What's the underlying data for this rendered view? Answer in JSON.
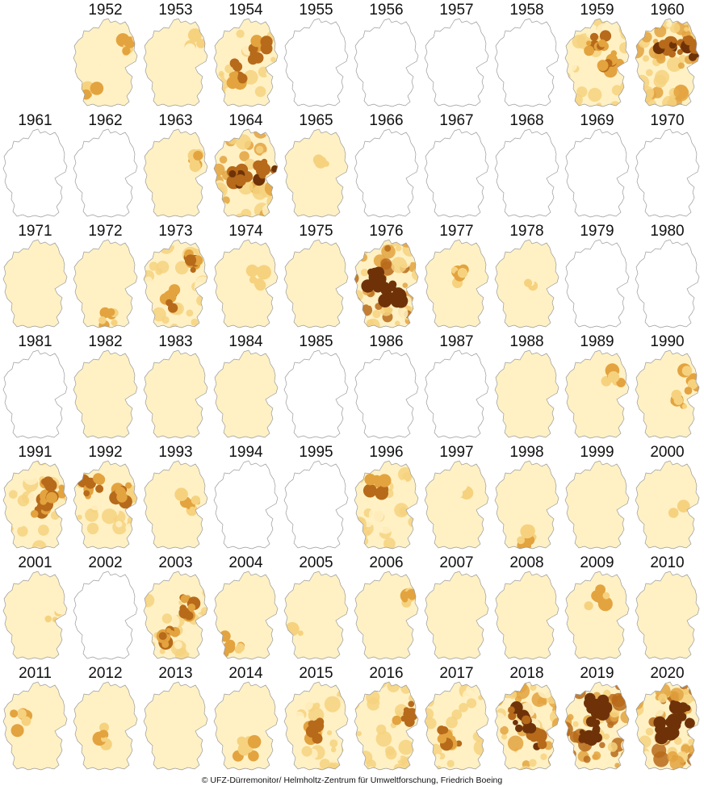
{
  "chart_data": {
    "type": "heatmap",
    "description_scale": "drought intensity level 0 (none) to 5 (exceptional), per year, shown on a map of Germany",
    "colors": [
      "#ffffff",
      "#fff1c4",
      "#f6d27f",
      "#e3a33f",
      "#b76a1a",
      "#6f3208"
    ],
    "years": [
      {
        "year": "1952",
        "level": 2,
        "hot": [
          [
            0.85,
            0.3
          ],
          [
            0.3,
            0.85
          ]
        ]
      },
      {
        "year": "1953",
        "level": 1,
        "hot": [
          [
            0.75,
            0.3
          ]
        ]
      },
      {
        "year": "1954",
        "level": 3,
        "hot": [
          [
            0.7,
            0.35
          ],
          [
            0.4,
            0.6
          ]
        ]
      },
      {
        "year": "1955",
        "level": 0,
        "hot": []
      },
      {
        "year": "1956",
        "level": 0,
        "hot": []
      },
      {
        "year": "1957",
        "level": 0,
        "hot": []
      },
      {
        "year": "1958",
        "level": 0,
        "hot": []
      },
      {
        "year": "1959",
        "level": 3,
        "hot": [
          [
            0.5,
            0.3
          ],
          [
            0.7,
            0.5
          ]
        ]
      },
      {
        "year": "1960",
        "level": 4,
        "hot": [
          [
            0.5,
            0.3
          ],
          [
            0.8,
            0.35
          ]
        ]
      },
      {
        "year": "1961",
        "level": 0,
        "hot": []
      },
      {
        "year": "1962",
        "level": 0,
        "hot": []
      },
      {
        "year": "1963",
        "level": 2,
        "hot": [
          [
            0.75,
            0.4
          ]
        ]
      },
      {
        "year": "1964",
        "level": 4,
        "hot": [
          [
            0.8,
            0.45
          ],
          [
            0.4,
            0.55
          ]
        ]
      },
      {
        "year": "1965",
        "level": 1,
        "hot": [
          [
            0.55,
            0.45
          ]
        ]
      },
      {
        "year": "1966",
        "level": 0,
        "hot": []
      },
      {
        "year": "1967",
        "level": 0,
        "hot": []
      },
      {
        "year": "1968",
        "level": 0,
        "hot": []
      },
      {
        "year": "1969",
        "level": 0,
        "hot": []
      },
      {
        "year": "1970",
        "level": 0,
        "hot": []
      },
      {
        "year": "1971",
        "level": 1,
        "hot": []
      },
      {
        "year": "1972",
        "level": 2,
        "hot": [
          [
            0.5,
            0.85
          ]
        ]
      },
      {
        "year": "1973",
        "level": 3,
        "hot": [
          [
            0.8,
            0.25
          ],
          [
            0.35,
            0.65
          ]
        ]
      },
      {
        "year": "1974",
        "level": 2,
        "hot": [
          [
            0.65,
            0.4
          ]
        ]
      },
      {
        "year": "1975",
        "level": 1,
        "hot": []
      },
      {
        "year": "1976",
        "level": 5,
        "hot": [
          [
            0.35,
            0.45
          ],
          [
            0.6,
            0.6
          ]
        ]
      },
      {
        "year": "1977",
        "level": 2,
        "hot": [
          [
            0.5,
            0.4
          ]
        ]
      },
      {
        "year": "1978",
        "level": 1,
        "hot": [
          [
            0.55,
            0.4
          ]
        ]
      },
      {
        "year": "1979",
        "level": 0,
        "hot": []
      },
      {
        "year": "1980",
        "level": 0,
        "hot": []
      },
      {
        "year": "1981",
        "level": 0,
        "hot": []
      },
      {
        "year": "1982",
        "level": 1,
        "hot": []
      },
      {
        "year": "1983",
        "level": 1,
        "hot": []
      },
      {
        "year": "1984",
        "level": 1,
        "hot": []
      },
      {
        "year": "1985",
        "level": 0,
        "hot": []
      },
      {
        "year": "1986",
        "level": 0,
        "hot": []
      },
      {
        "year": "1987",
        "level": 0,
        "hot": []
      },
      {
        "year": "1988",
        "level": 1,
        "hot": []
      },
      {
        "year": "1989",
        "level": 2,
        "hot": [
          [
            0.75,
            0.3
          ]
        ]
      },
      {
        "year": "1990",
        "level": 2,
        "hot": [
          [
            0.8,
            0.3
          ],
          [
            0.7,
            0.55
          ]
        ]
      },
      {
        "year": "1991",
        "level": 3,
        "hot": [
          [
            0.6,
            0.5
          ],
          [
            0.75,
            0.3
          ]
        ]
      },
      {
        "year": "1992",
        "level": 3,
        "hot": [
          [
            0.75,
            0.35
          ],
          [
            0.3,
            0.3
          ]
        ]
      },
      {
        "year": "1993",
        "level": 2,
        "hot": [
          [
            0.7,
            0.45
          ]
        ]
      },
      {
        "year": "1994",
        "level": 0,
        "hot": []
      },
      {
        "year": "1995",
        "level": 0,
        "hot": []
      },
      {
        "year": "1996",
        "level": 3,
        "hot": [
          [
            0.35,
            0.3
          ]
        ]
      },
      {
        "year": "1997",
        "level": 1,
        "hot": [
          [
            0.6,
            0.3
          ]
        ]
      },
      {
        "year": "1998",
        "level": 2,
        "hot": [
          [
            0.5,
            0.85
          ]
        ]
      },
      {
        "year": "1999",
        "level": 1,
        "hot": []
      },
      {
        "year": "2000",
        "level": 1,
        "hot": [
          [
            0.7,
            0.5
          ]
        ]
      },
      {
        "year": "2001",
        "level": 1,
        "hot": [
          [
            0.75,
            0.5
          ]
        ]
      },
      {
        "year": "2002",
        "level": 0,
        "hot": []
      },
      {
        "year": "2003",
        "level": 3,
        "hot": [
          [
            0.4,
            0.75
          ],
          [
            0.7,
            0.4
          ]
        ]
      },
      {
        "year": "2004",
        "level": 2,
        "hot": [
          [
            0.3,
            0.8
          ]
        ]
      },
      {
        "year": "2005",
        "level": 1,
        "hot": [
          [
            0.2,
            0.65
          ]
        ]
      },
      {
        "year": "2006",
        "level": 2,
        "hot": [
          [
            0.75,
            0.35
          ]
        ]
      },
      {
        "year": "2007",
        "level": 1,
        "hot": []
      },
      {
        "year": "2008",
        "level": 1,
        "hot": []
      },
      {
        "year": "2009",
        "level": 2,
        "hot": [
          [
            0.5,
            0.3
          ]
        ]
      },
      {
        "year": "2010",
        "level": 1,
        "hot": []
      },
      {
        "year": "2011",
        "level": 2,
        "hot": [
          [
            0.3,
            0.45
          ]
        ]
      },
      {
        "year": "2012",
        "level": 2,
        "hot": [
          [
            0.5,
            0.6
          ]
        ]
      },
      {
        "year": "2013",
        "level": 1,
        "hot": []
      },
      {
        "year": "2014",
        "level": 2,
        "hot": [
          [
            0.5,
            0.75
          ]
        ]
      },
      {
        "year": "2015",
        "level": 3,
        "hot": [
          [
            0.5,
            0.55
          ]
        ]
      },
      {
        "year": "2016",
        "level": 3,
        "hot": [
          [
            0.75,
            0.35
          ]
        ]
      },
      {
        "year": "2017",
        "level": 3,
        "hot": [
          [
            0.4,
            0.6
          ]
        ]
      },
      {
        "year": "2018",
        "level": 4,
        "hot": [
          [
            0.4,
            0.4
          ],
          [
            0.6,
            0.6
          ]
        ]
      },
      {
        "year": "2019",
        "level": 5,
        "hot": [
          [
            0.5,
            0.3
          ],
          [
            0.4,
            0.55
          ]
        ]
      },
      {
        "year": "2020",
        "level": 5,
        "hot": [
          [
            0.7,
            0.35
          ],
          [
            0.5,
            0.55
          ]
        ]
      }
    ]
  },
  "credit": "© UFZ-Dürremonitor/ Helmholtz-Zentrum für Umweltforschung, Friedrich Boeing"
}
